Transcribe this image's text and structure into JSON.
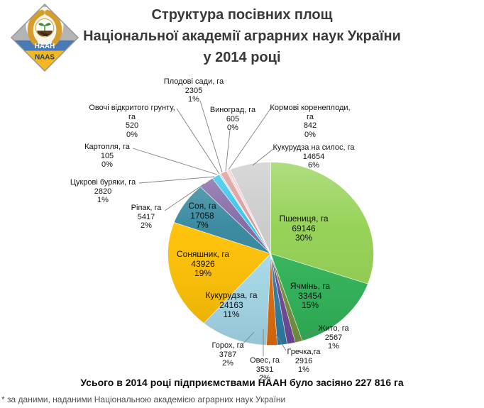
{
  "header": {
    "title_lines": [
      "Структура посівних площ",
      "Національної академії аграрних наук України",
      "у 2014 році"
    ],
    "logo": {
      "top_text": "НААН",
      "bottom_text": "NAAS"
    }
  },
  "chart_data": {
    "type": "pie",
    "title": "Структура посівних площ Національної академії аграрних наук України у 2014 році",
    "unit": "га",
    "total_ha": 227816,
    "start_angle_deg": 0,
    "direction": "clockwise",
    "legend": "none",
    "slices": [
      {
        "id": "pshenytsia",
        "label_lines": [
          "Пшениця, га"
        ],
        "value": 69146,
        "pct": "30%",
        "color": "#92D050",
        "placement": "inside"
      },
      {
        "id": "yachmin",
        "label_lines": [
          "Ячмінь, га"
        ],
        "value": 33454,
        "pct": "15%",
        "color": "#2FB457",
        "placement": "inside"
      },
      {
        "id": "zhyto",
        "label_lines": [
          "Жито, га"
        ],
        "value": 2567,
        "pct": "1%",
        "color": "#77933C",
        "placement": "outside"
      },
      {
        "id": "hrechka",
        "label_lines": [
          "Гречка,га"
        ],
        "value": 2916,
        "pct": "1%",
        "color": "#6F4B9B",
        "placement": "outside"
      },
      {
        "id": "oves",
        "label_lines": [
          "Овес, га"
        ],
        "value": 3531,
        "pct": "2%",
        "color": "#2E7FA5",
        "placement": "outside"
      },
      {
        "id": "horokh",
        "label_lines": [
          "Горох, га"
        ],
        "value": 3787,
        "pct": "2%",
        "color": "#E36C09",
        "placement": "outside"
      },
      {
        "id": "kukurudza",
        "label_lines": [
          "Кукурудза, га"
        ],
        "value": 24163,
        "pct": "11%",
        "color": "#A6DBEC",
        "placement": "inside"
      },
      {
        "id": "soniashnyk",
        "label_lines": [
          "Соняшник, га"
        ],
        "value": 43926,
        "pct": "19%",
        "color": "#FFC000",
        "placement": "inside"
      },
      {
        "id": "soia",
        "label_lines": [
          "Соя, га"
        ],
        "value": 17058,
        "pct": "7%",
        "color": "#31859C",
        "placement": "inside"
      },
      {
        "id": "ripak",
        "label_lines": [
          "Ріпак, га"
        ],
        "value": 5417,
        "pct": "2%",
        "color": "#8064A2",
        "placement": "outside"
      },
      {
        "id": "tsukrovi",
        "label_lines": [
          "Цукрові буряки, га"
        ],
        "value": 2820,
        "pct": "1%",
        "color": "#2BC4E9",
        "placement": "outside"
      },
      {
        "id": "kartoplia",
        "label_lines": [
          "Картопля, га"
        ],
        "value": 105,
        "pct": "0%",
        "color": "#C0504D",
        "placement": "outside"
      },
      {
        "id": "ovochi",
        "label_lines": [
          "Овочі відкритого грунту,",
          "га"
        ],
        "value": 520,
        "pct": "0%",
        "color": "#AFC6E9",
        "placement": "outside"
      },
      {
        "id": "plodovi",
        "label_lines": [
          "Плодові сади, га"
        ],
        "value": 2305,
        "pct": "1%",
        "color": "#D99694",
        "placement": "outside"
      },
      {
        "id": "vynohrad",
        "label_lines": [
          "Виноград, га"
        ],
        "value": 605,
        "pct": "0%",
        "color": "#F0C8C6",
        "placement": "outside"
      },
      {
        "id": "kormovi",
        "label_lines": [
          "Кормові коренеплоди,",
          "га"
        ],
        "value": 842,
        "pct": "0%",
        "color": "#EDC6CC",
        "placement": "outside"
      },
      {
        "id": "silos",
        "label_lines": [
          "Кукурудза на силос, га"
        ],
        "value": 14654,
        "pct": "6%",
        "color": "#C9C9C9",
        "placement": "outside"
      }
    ]
  },
  "footer": {
    "total_line": "Усього в 2014 році підприємствами НААН було засіяно 227 816 га",
    "footnote": "* за даними, наданими Національною академією аграрних наук України"
  }
}
